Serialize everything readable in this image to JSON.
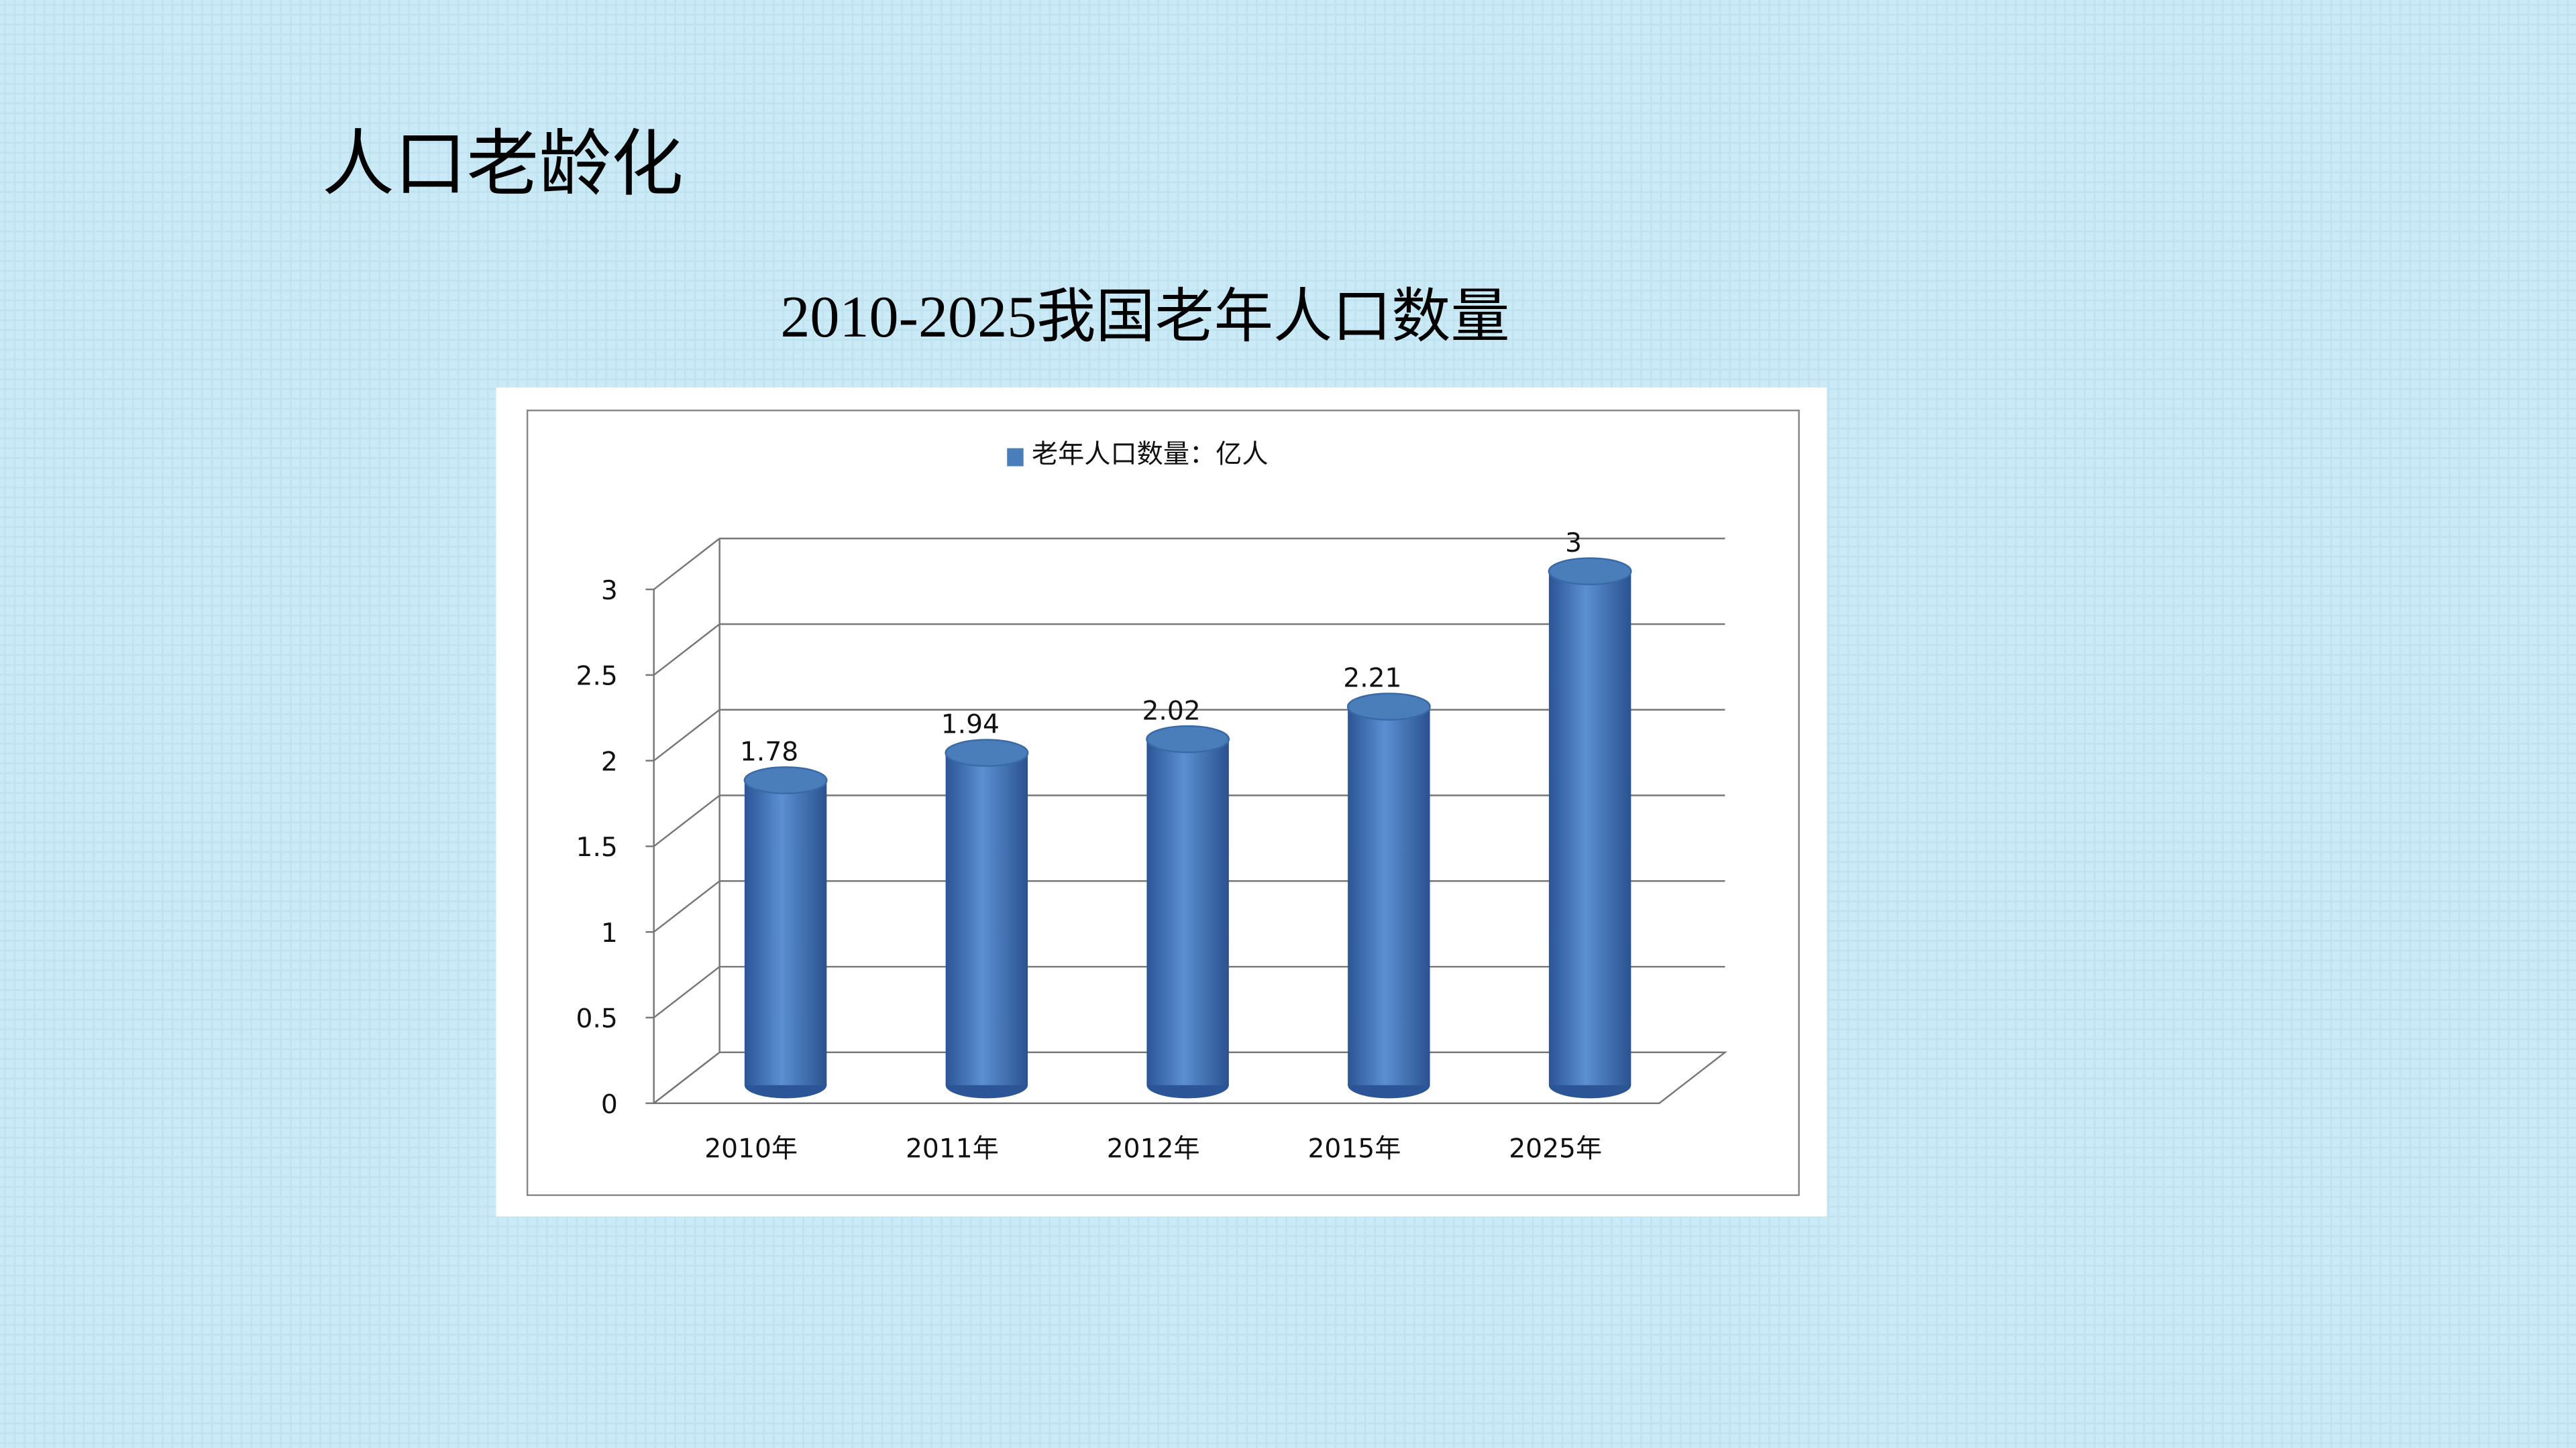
{
  "page_title": "人口老龄化",
  "chart_data": {
    "type": "bar3d",
    "title": "2010-2025我国老年人口数量",
    "categories": [
      "2010年",
      "2011年",
      "2012年",
      "2015年",
      "2025年"
    ],
    "series": [
      {
        "name": "老年人口数量：亿人",
        "color": "#4a7ebb",
        "values": [
          1.78,
          1.94,
          2.02,
          2.21,
          3
        ]
      }
    ],
    "ylim": [
      0,
      3
    ],
    "yticks": [
      0,
      0.5,
      1,
      1.5,
      2,
      2.5,
      3
    ],
    "grid": true,
    "legend": "top"
  }
}
